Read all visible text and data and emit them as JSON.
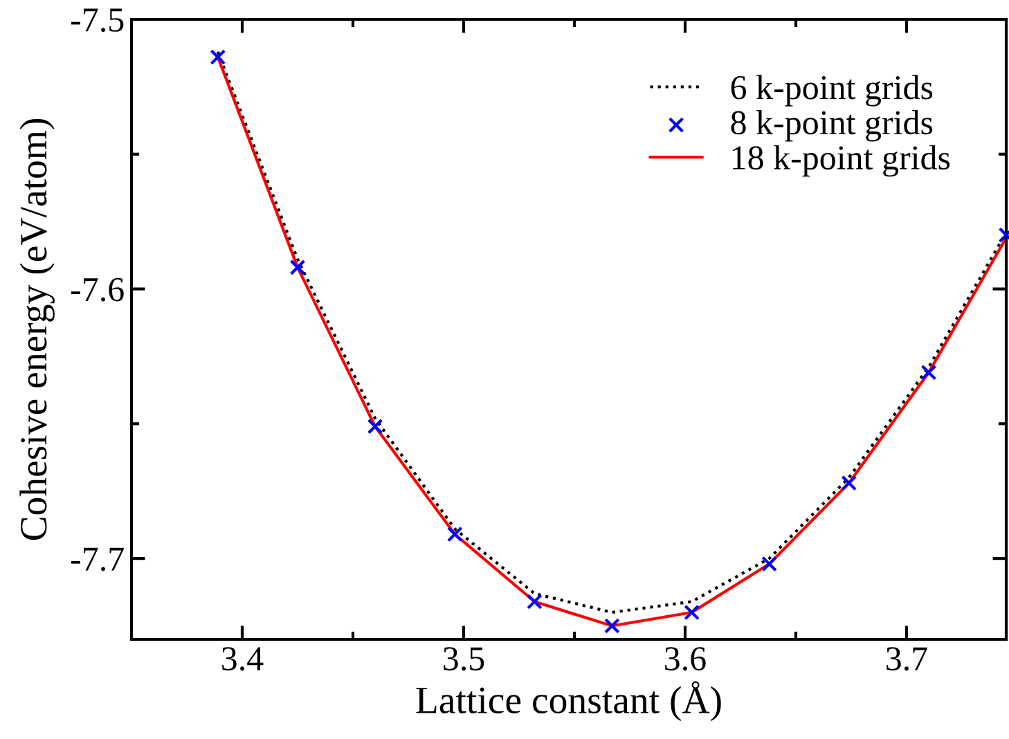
{
  "chart_data": {
    "type": "line",
    "xlabel": "Lattice constant (Å)",
    "ylabel": "Cohesive energy (eV/atom)",
    "x": [
      3.389,
      3.425,
      3.46,
      3.496,
      3.532,
      3.567,
      3.603,
      3.638,
      3.674,
      3.71,
      3.745
    ],
    "xlim": [
      3.35,
      3.745
    ],
    "ylim": [
      -7.73,
      -7.5
    ],
    "xticks": [
      3.4,
      {
        "value": 3.45,
        "label": null
      },
      3.5,
      {
        "value": 3.55,
        "label": null
      },
      3.6,
      {
        "value": 3.65,
        "label": null
      },
      3.7
    ],
    "yticks": [
      {
        "value": -7.5,
        "label": "-7.5"
      },
      {
        "value": -7.55,
        "label": null
      },
      {
        "value": -7.6,
        "label": "-7.6"
      },
      {
        "value": -7.65,
        "label": null
      },
      {
        "value": -7.7,
        "label": "-7.7"
      }
    ],
    "grid": false,
    "legend": "top right",
    "series": [
      {
        "name": "6 k-point grids",
        "color": "#000000",
        "line_style": "dotted",
        "marker": "none",
        "values": [
          -7.512,
          -7.589,
          -7.648,
          -7.689,
          -7.713,
          -7.72,
          -7.716,
          -7.7,
          -7.67,
          -7.629,
          -7.579
        ]
      },
      {
        "name": "8 k-point grids",
        "type": "scatter",
        "color": "#0000ff",
        "marker": "cross",
        "values": [
          -7.514,
          -7.592,
          -7.651,
          -7.691,
          -7.716,
          -7.725,
          -7.72,
          -7.702,
          -7.672,
          -7.631,
          -7.58
        ]
      },
      {
        "name": "18 k-point grids",
        "color": "#ff0000",
        "line_style": "solid",
        "marker": "none",
        "values": [
          -7.514,
          -7.592,
          -7.651,
          -7.691,
          -7.716,
          -7.725,
          -7.72,
          -7.702,
          -7.672,
          -7.631,
          -7.581
        ]
      }
    ]
  }
}
